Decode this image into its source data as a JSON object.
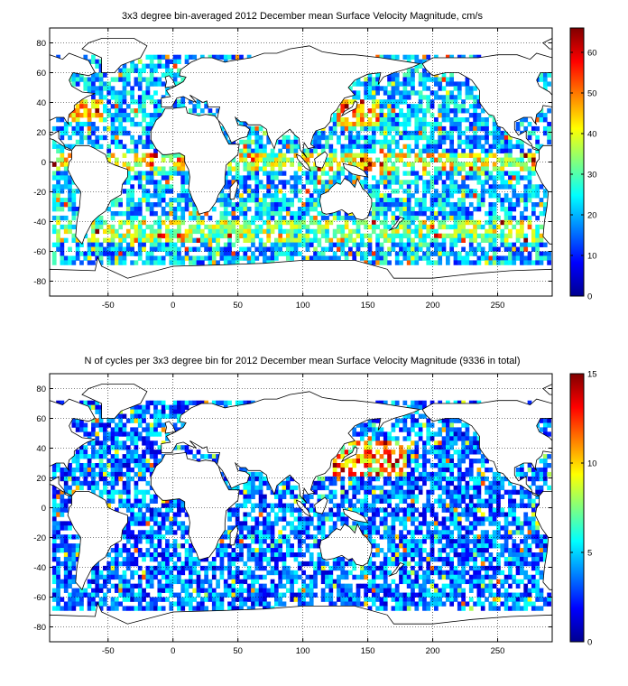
{
  "chart_data": [
    {
      "type": "heatmap",
      "title": "3x3 degree bin-averaged 2012 December mean Surface Velocity Magnitude, cm/s",
      "xlabel": "",
      "ylabel": "",
      "xlim": [
        -95,
        292
      ],
      "ylim": [
        -90,
        90
      ],
      "bin_size_degrees": 3,
      "xticks": [
        -50,
        0,
        50,
        100,
        150,
        200,
        250
      ],
      "xtick_labels": [
        "-50",
        "0",
        "50",
        "100",
        "150",
        "200",
        "250"
      ],
      "yticks": [
        -80,
        -60,
        -40,
        -20,
        0,
        20,
        40,
        60,
        80
      ],
      "ytick_labels": [
        "-80",
        "-60",
        "-40",
        "-20",
        "0",
        "20",
        "40",
        "60",
        "80"
      ],
      "grid": true,
      "colormap": "jet",
      "colorbar": {
        "range": [
          0,
          66
        ],
        "ticks": [
          0,
          10,
          20,
          30,
          40,
          50,
          60
        ],
        "tick_labels": [
          "0",
          "10",
          "20",
          "30",
          "40",
          "50",
          "60"
        ]
      },
      "pattern": "velocity",
      "seed": 17
    },
    {
      "type": "heatmap",
      "title": "N of cycles per 3x3 degree bin for 2012 December mean Surface Velocity Magnitude (9336 in total)",
      "xlabel": "",
      "ylabel": "",
      "xlim": [
        -95,
        292
      ],
      "ylim": [
        -90,
        90
      ],
      "bin_size_degrees": 3,
      "total_cycles": 9336,
      "xticks": [
        -50,
        0,
        50,
        100,
        150,
        200,
        250
      ],
      "xtick_labels": [
        "-50",
        "0",
        "50",
        "100",
        "150",
        "200",
        "250"
      ],
      "yticks": [
        -80,
        -60,
        -40,
        -20,
        0,
        20,
        40,
        60,
        80
      ],
      "ytick_labels": [
        "-80",
        "-60",
        "-40",
        "-20",
        "0",
        "20",
        "40",
        "60",
        "80"
      ],
      "grid": true,
      "colormap": "jet",
      "colorbar": {
        "range": [
          0,
          15
        ],
        "ticks": [
          0,
          5,
          10,
          15
        ],
        "tick_labels": [
          "0",
          "5",
          "10",
          "15"
        ]
      },
      "pattern": "counts",
      "seed": 91
    }
  ]
}
